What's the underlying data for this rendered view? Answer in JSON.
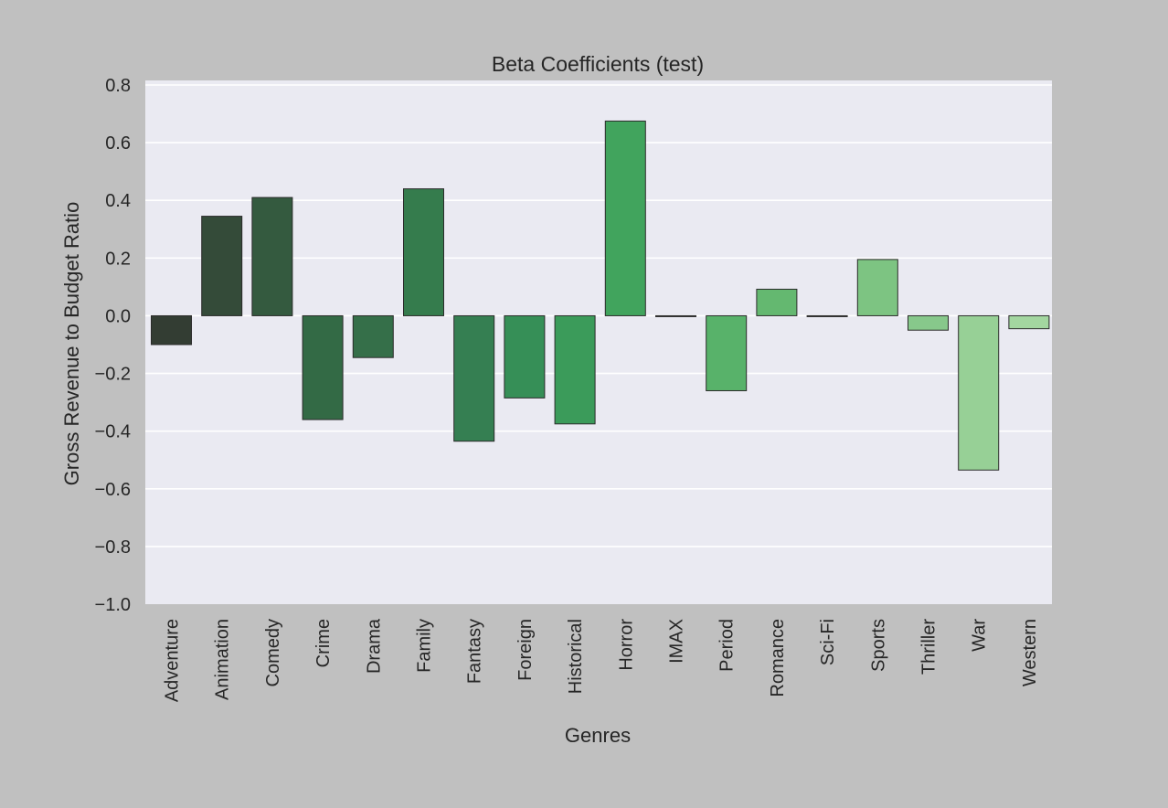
{
  "chart_data": {
    "type": "bar",
    "title": "Beta Coefficients (test)",
    "xlabel": "Genres",
    "ylabel": "Gross Revenue to Budget Ratio",
    "ylim": [
      -1.0,
      0.8
    ],
    "yticks": [
      "0.8",
      "0.6",
      "0.4",
      "0.2",
      "0.0",
      "−0.2",
      "−0.4",
      "−0.6",
      "−0.8",
      "−1.0"
    ],
    "ytick_values": [
      0.8,
      0.6,
      0.4,
      0.2,
      0.0,
      -0.2,
      -0.4,
      -0.6,
      -0.8,
      -1.0
    ],
    "grid": true,
    "categories": [
      "Adventure",
      "Animation",
      "Comedy",
      "Crime",
      "Drama",
      "Family",
      "Fantasy",
      "Foreign",
      "Historical",
      "Horror",
      "IMAX",
      "Period",
      "Romance",
      "Sci-Fi",
      "Sports",
      "Thriller",
      "War",
      "Western"
    ],
    "values": [
      -0.1,
      0.345,
      0.41,
      -0.36,
      -0.145,
      0.44,
      -0.435,
      -0.285,
      -0.375,
      0.675,
      0.0,
      -0.26,
      0.092,
      0.0,
      0.195,
      -0.05,
      -0.535,
      -0.045
    ],
    "colors": [
      "#333d33",
      "#344b39",
      "#345a3f",
      "#336a45",
      "#356f49",
      "#357c4d",
      "#357f52",
      "#368f57",
      "#3b9b5a",
      "#41a45d",
      "#4aaa61",
      "#58b26a",
      "#64b870",
      "#6ebe77",
      "#7dc482",
      "#87c88b",
      "#97d096",
      "#a3d6a0"
    ]
  }
}
